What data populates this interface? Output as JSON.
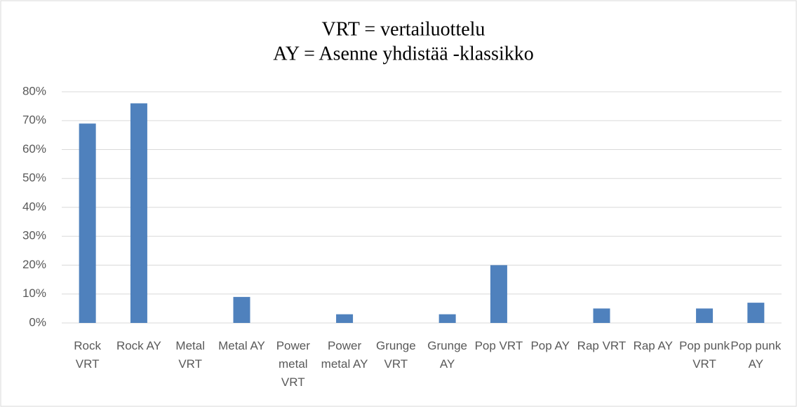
{
  "chart_data": {
    "type": "bar",
    "title": [
      "VRT = vertailuottelu",
      "AY = Asenne yhdistää -klassikko"
    ],
    "categories": [
      "Rock VRT",
      "Rock AY",
      "Metal VRT",
      "Metal AY",
      "Power metal VRT",
      "Power metal AY",
      "Grunge VRT",
      "Grunge AY",
      "Pop VRT",
      "Pop AY",
      "Rap VRT",
      "Rap AY",
      "Pop punk VRT",
      "Pop punk AY"
    ],
    "values": [
      69,
      76,
      0,
      9,
      0,
      3,
      0,
      3,
      20,
      0,
      5,
      0,
      5,
      7
    ],
    "color": "#4f81bd",
    "ylim": [
      0,
      80
    ],
    "yticks": [
      {
        "value": 0,
        "label": "0%"
      },
      {
        "value": 10,
        "label": "10%"
      },
      {
        "value": 20,
        "label": "20%"
      },
      {
        "value": 30,
        "label": "30%"
      },
      {
        "value": 40,
        "label": "40%"
      },
      {
        "value": 50,
        "label": "50%"
      },
      {
        "value": 60,
        "label": "60%"
      },
      {
        "value": 70,
        "label": "70%"
      },
      {
        "value": 80,
        "label": "80%"
      }
    ],
    "grid": true
  }
}
